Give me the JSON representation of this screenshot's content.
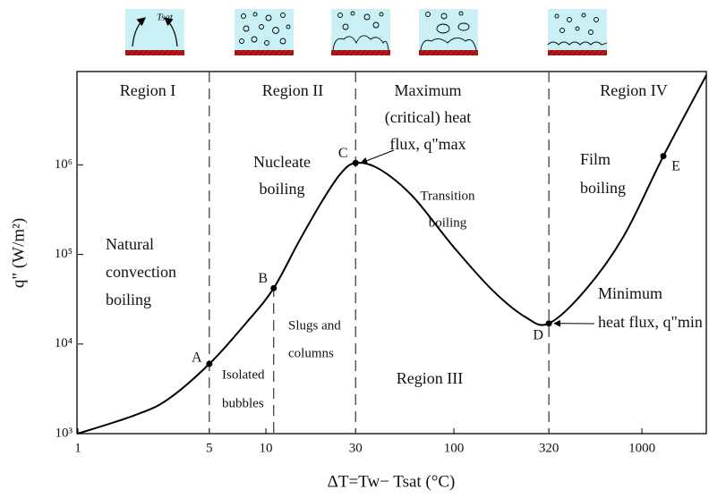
{
  "chart_data": {
    "type": "line",
    "x_label": "ΔT=Tw− Tsat (°C)",
    "y_label": "q\" (W/m²)",
    "xscale": "log",
    "yscale": "log",
    "xlim": [
      1,
      2200
    ],
    "ylim": [
      1000,
      11000000
    ],
    "xticks": [
      1,
      5,
      10,
      30,
      100,
      320,
      1000
    ],
    "yticks": [
      {
        "value": 1000,
        "label": "10³"
      },
      {
        "value": 10000,
        "label": "10⁴"
      },
      {
        "value": 100000,
        "label": "10⁵"
      },
      {
        "value": 1000000,
        "label": "10⁶"
      }
    ],
    "series": [
      {
        "color": "#000000",
        "x": [
          1,
          2,
          3,
          5,
          8,
          11,
          15,
          20,
          25,
          30,
          40,
          60,
          100,
          160,
          240,
          320,
          500,
          800,
          1300,
          2200
        ],
        "values": [
          1000,
          1600,
          2400,
          6000,
          18000,
          42000,
          140000,
          400000,
          800000,
          1050000,
          900000,
          450000,
          120000,
          40000,
          20000,
          17000,
          40000,
          160000,
          1250000,
          10000000
        ]
      }
    ],
    "points": [
      {
        "label": "A",
        "x": 5,
        "y": 6000
      },
      {
        "label": "B",
        "x": 11,
        "y": 42000
      },
      {
        "label": "C",
        "x": 30,
        "y": 1050000
      },
      {
        "label": "D",
        "x": 320,
        "y": 17000
      },
      {
        "label": "E",
        "x": 1300,
        "y": 1250000
      }
    ],
    "region_lines": [
      5,
      11,
      30,
      320
    ],
    "annotations": [
      "Region I",
      "Region II",
      "Maximum",
      "(critical) heat",
      "flux, q\"max",
      "Region IV",
      "Nucleate",
      "boiling",
      "Transition",
      "boiling",
      "Natural",
      "convection",
      "boiling",
      "Slugs and",
      "columns",
      "Isolated",
      "bubbles",
      "Region III",
      "Film",
      "boiling",
      "Minimum",
      "heat flux, q\"min"
    ],
    "icon_label": "Tsat"
  }
}
